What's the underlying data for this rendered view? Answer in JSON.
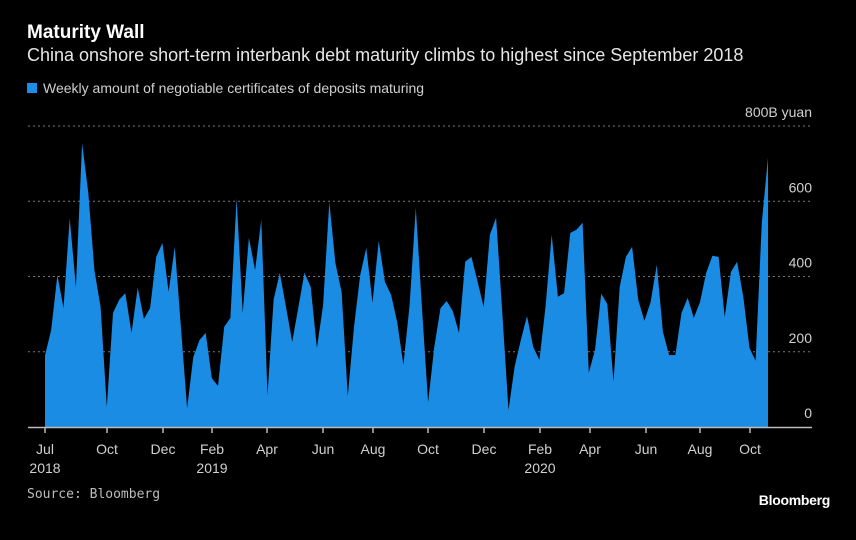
{
  "title": "Maturity Wall",
  "subtitle": "China onshore short-term interbank debt maturity climbs to highest since September 2018",
  "source": "Source: Bloomberg",
  "logo": "Bloomberg",
  "chart_data": {
    "type": "area",
    "frequency": "weekly",
    "series": [
      {
        "name": "Weekly amount of negotiable certificates of deposits maturing",
        "color": "#1a8ce3",
        "values": [
          190,
          258,
          404,
          316,
          555,
          372,
          755,
          622,
          417,
          319,
          53,
          303,
          338,
          356,
          250,
          370,
          287,
          316,
          452,
          489,
          359,
          479,
          266,
          50,
          186,
          231,
          250,
          130,
          109,
          266,
          290,
          609,
          303,
          503,
          417,
          551,
          85,
          338,
          410,
          319,
          226,
          319,
          410,
          372,
          210,
          324,
          598,
          436,
          359,
          82,
          266,
          404,
          476,
          330,
          495,
          386,
          351,
          279,
          165,
          324,
          583,
          319,
          66,
          213,
          316,
          335,
          308,
          250,
          439,
          452,
          386,
          319,
          511,
          556,
          303,
          45,
          160,
          231,
          295,
          213,
          178,
          319,
          511,
          346,
          356,
          516,
          524,
          543,
          144,
          205,
          354,
          327,
          120,
          372,
          452,
          479,
          338,
          282,
          332,
          431,
          253,
          191,
          191,
          303,
          343,
          290,
          332,
          410,
          455,
          452,
          292,
          412,
          439,
          346,
          210,
          176,
          543,
          716
        ]
      }
    ],
    "ylim": [
      0,
      800
    ],
    "yticks": [
      {
        "value": 0,
        "label": "0"
      },
      {
        "value": 200,
        "label": "200"
      },
      {
        "value": 400,
        "label": "400"
      },
      {
        "value": 600,
        "label": "600"
      },
      {
        "value": 800,
        "label": "800B yuan"
      }
    ],
    "xticks": [
      {
        "label": "Jul",
        "year": "2018"
      },
      {
        "label": "Oct",
        "year": ""
      },
      {
        "label": "Dec",
        "year": ""
      },
      {
        "label": "Feb",
        "year": "2019"
      },
      {
        "label": "Apr",
        "year": ""
      },
      {
        "label": "Jun",
        "year": ""
      },
      {
        "label": "Aug",
        "year": ""
      },
      {
        "label": "Oct",
        "year": ""
      },
      {
        "label": "Dec",
        "year": ""
      },
      {
        "label": "Feb",
        "year": "2020"
      },
      {
        "label": "Apr",
        "year": ""
      },
      {
        "label": "Jun",
        "year": ""
      },
      {
        "label": "Aug",
        "year": ""
      },
      {
        "label": "Oct",
        "year": ""
      }
    ],
    "grid": true,
    "legend": "top-left"
  }
}
